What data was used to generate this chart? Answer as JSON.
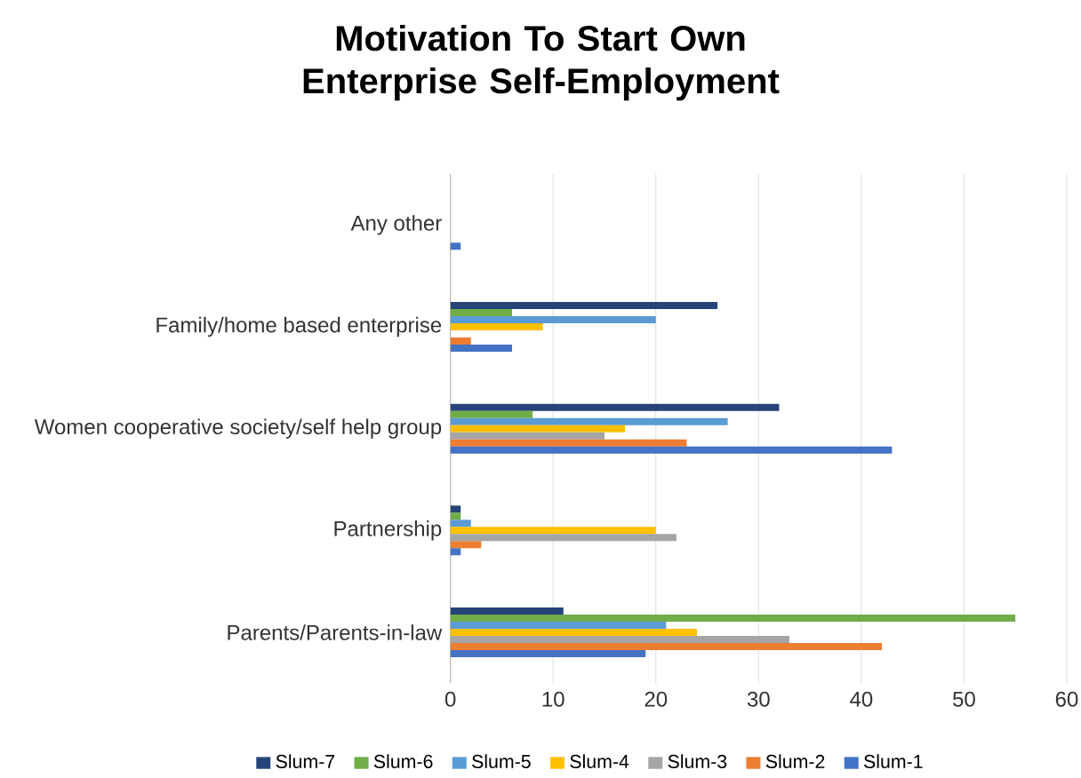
{
  "chart_data": {
    "type": "bar",
    "orientation": "horizontal",
    "title": "Motivation To Start Own Enterprise Self-Employment",
    "categories": [
      "Any other",
      "Family/home based enterprise",
      "Women cooperative society/self help group",
      "Partnership",
      "Parents/Parents-in-law"
    ],
    "series": [
      {
        "name": "Slum-7",
        "color": "#264478",
        "values": [
          0,
          26,
          32,
          1,
          11
        ]
      },
      {
        "name": "Slum-6",
        "color": "#70ad47",
        "values": [
          0,
          6,
          8,
          1,
          55
        ]
      },
      {
        "name": "Slum-5",
        "color": "#5b9bd5",
        "values": [
          0,
          20,
          27,
          2,
          21
        ]
      },
      {
        "name": "Slum-4",
        "color": "#ffc000",
        "values": [
          0,
          9,
          17,
          20,
          24
        ]
      },
      {
        "name": "Slum-3",
        "color": "#a5a5a5",
        "values": [
          0,
          0,
          15,
          22,
          33
        ]
      },
      {
        "name": "Slum-2",
        "color": "#ed7d31",
        "values": [
          0,
          2,
          23,
          3,
          42
        ]
      },
      {
        "name": "Slum-1",
        "color": "#4472c4",
        "values": [
          1,
          6,
          43,
          1,
          19
        ]
      }
    ],
    "xlim": [
      0,
      60
    ],
    "xticks": [
      0,
      10,
      20,
      30,
      40,
      50,
      60
    ],
    "grid": "x",
    "legend": "bottom"
  }
}
